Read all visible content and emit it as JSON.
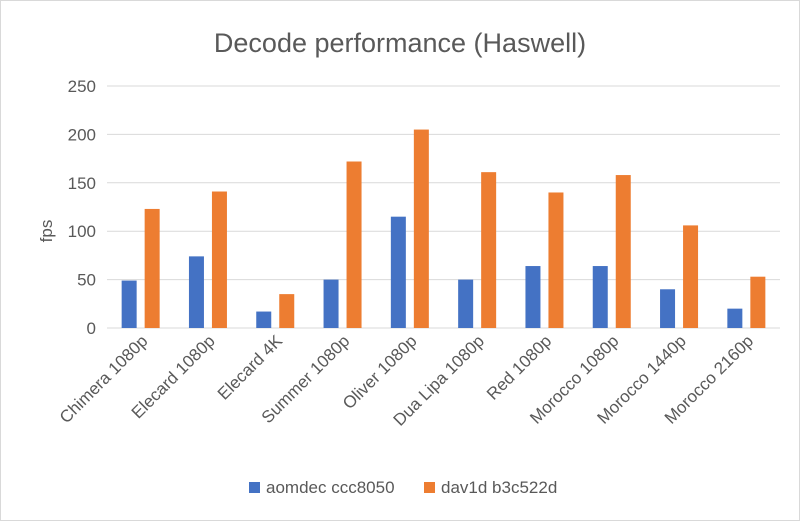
{
  "chart_data": {
    "type": "bar",
    "title": "Decode performance (Haswell)",
    "xlabel": "",
    "ylabel": "fps",
    "ylim": [
      0,
      250
    ],
    "yticks": [
      0,
      50,
      100,
      150,
      200,
      250
    ],
    "grid": true,
    "legend": "bottom",
    "categories": [
      "Chimera 1080p",
      "Elecard 1080p",
      "Elecard 4K",
      "Summer 1080p",
      "Oliver 1080p",
      "Dua Lipa 1080p",
      "Red 1080p",
      "Morocco 1080p",
      "Morocco 1440p",
      "Morocco 2160p"
    ],
    "series": [
      {
        "name": "aomdec ccc8050",
        "color": "#4472c4",
        "values": [
          49,
          74,
          17,
          50,
          115,
          50,
          64,
          64,
          40,
          20
        ]
      },
      {
        "name": "dav1d b3c522d",
        "color": "#ed7d31",
        "values": [
          123,
          141,
          35,
          172,
          205,
          161,
          140,
          158,
          106,
          53
        ]
      }
    ]
  }
}
